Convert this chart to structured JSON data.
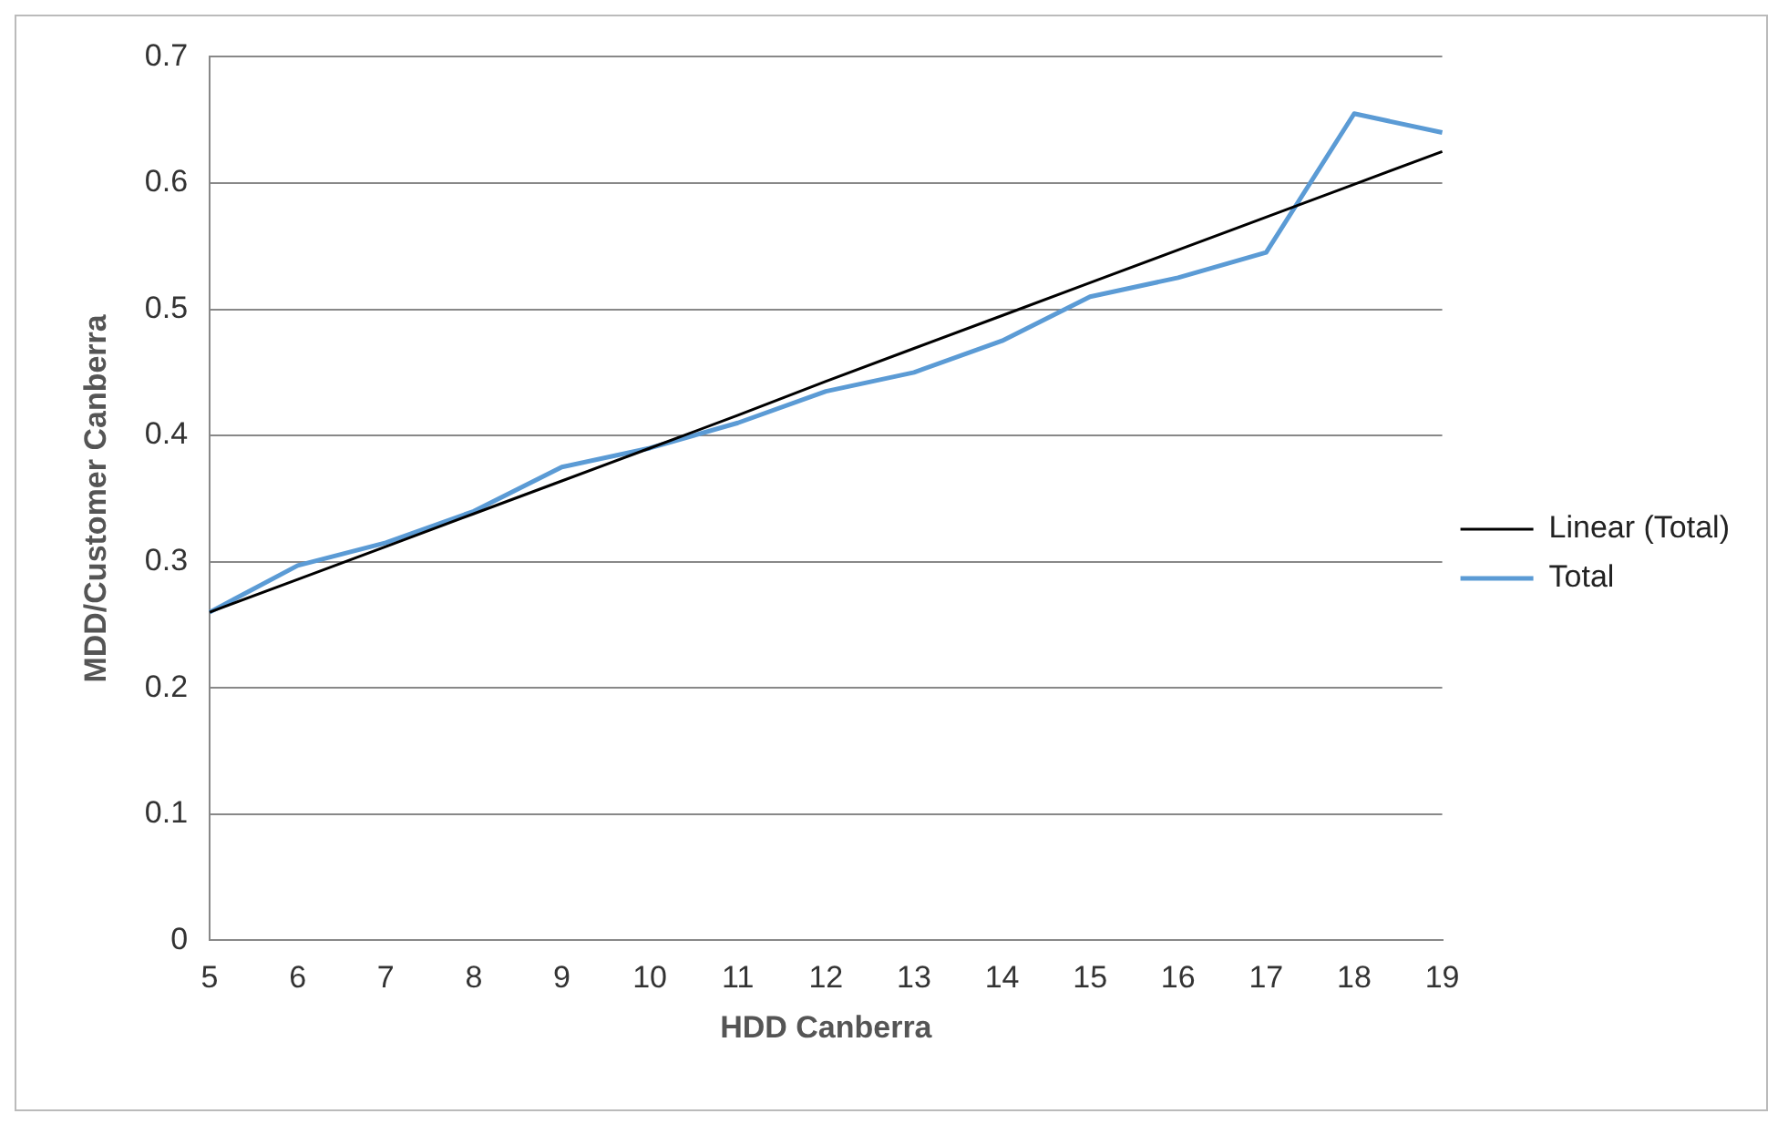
{
  "chart_data": {
    "type": "line",
    "xlabel": "HDD Canberra",
    "ylabel": "MDD/Customer Canberra",
    "categories": [
      "5",
      "6",
      "7",
      "8",
      "9",
      "10",
      "11",
      "12",
      "13",
      "14",
      "15",
      "16",
      "17",
      "18",
      "19"
    ],
    "series": [
      {
        "name": "Total",
        "color": "#5b9bd5",
        "values": [
          0.26,
          0.297,
          0.315,
          0.34,
          0.375,
          0.39,
          0.41,
          0.435,
          0.45,
          0.475,
          0.51,
          0.525,
          0.545,
          0.655,
          0.64
        ]
      },
      {
        "name": "Linear (Total)",
        "color": "#000000",
        "values": [
          0.26,
          0.286,
          0.312,
          0.338,
          0.364,
          0.39,
          0.416,
          0.443,
          0.469,
          0.495,
          0.521,
          0.547,
          0.573,
          0.599,
          0.625
        ]
      }
    ],
    "ylim": [
      0,
      0.7
    ],
    "yticks": [
      0,
      0.1,
      0.2,
      0.3,
      0.4,
      0.5,
      0.6,
      0.7
    ],
    "grid": "y",
    "legend": "right",
    "marker": "none",
    "line_style": "solid"
  }
}
